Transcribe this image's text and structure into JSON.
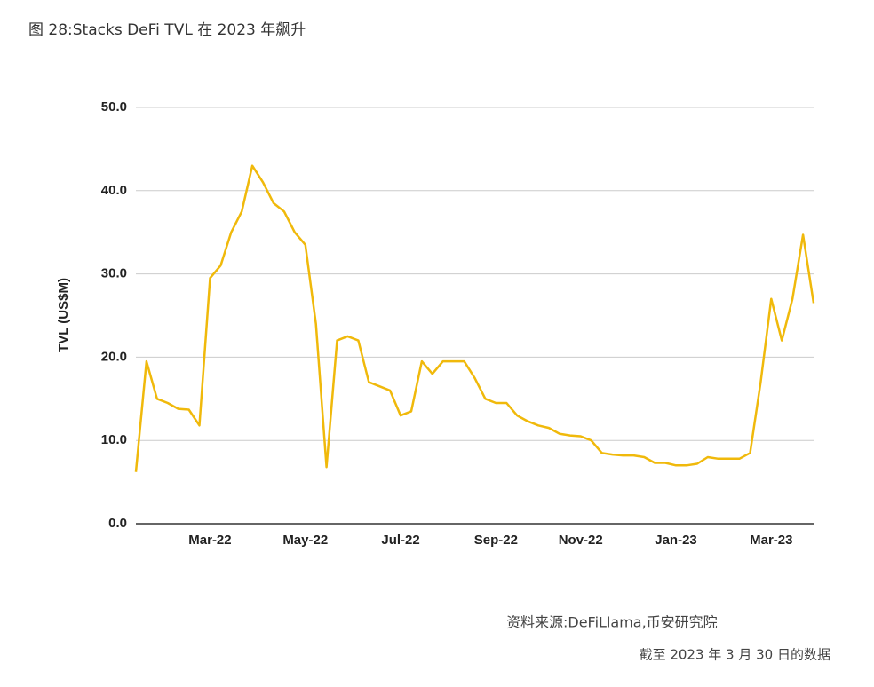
{
  "chart_data": {
    "type": "line",
    "title": "图 28:Stacks DeFi TVL 在 2023 年飙升",
    "ylabel": "TVL (US$M)",
    "source": "资料来源:DeFiLlama,币安研究院",
    "note": "截至 2023 年 3 月 30 日的数据",
    "categories": [
      null,
      null,
      null,
      null,
      null,
      null,
      null,
      "Mar-22",
      null,
      null,
      null,
      null,
      null,
      null,
      null,
      null,
      "May-22",
      null,
      null,
      null,
      null,
      null,
      null,
      null,
      null,
      "Jul-22",
      null,
      null,
      null,
      null,
      null,
      null,
      null,
      null,
      "Sep-22",
      null,
      null,
      null,
      null,
      null,
      null,
      null,
      "Nov-22",
      null,
      null,
      null,
      null,
      null,
      null,
      null,
      null,
      "Jan-23",
      null,
      null,
      null,
      null,
      null,
      null,
      null,
      null,
      "Mar-23",
      null,
      null,
      null,
      null
    ],
    "series": [
      {
        "name": "TVL",
        "color": "#f0b90b",
        "values": [
          6.2,
          19.5,
          15,
          14.5,
          13.8,
          13.7,
          11.8,
          29.5,
          31,
          35,
          37.5,
          43,
          41,
          38.5,
          37.5,
          35,
          33.5,
          24,
          6.8,
          22,
          22.5,
          22,
          17,
          16.5,
          16,
          13,
          13.5,
          19.5,
          18,
          19.5,
          19.5,
          19.5,
          17.5,
          15,
          14.5,
          14.5,
          13,
          12.3,
          11.8,
          11.5,
          10.8,
          10.6,
          10.5,
          10,
          8.5,
          8.3,
          8.2,
          8.2,
          8,
          7.3,
          7.3,
          7,
          7,
          7.2,
          8,
          7.8,
          7.8,
          7.8,
          8.5,
          17,
          27,
          22,
          27,
          34.7,
          26.5
        ]
      }
    ],
    "ylim": [
      0,
      50
    ],
    "yticks": [
      {
        "value": 0,
        "label": "0.0"
      },
      {
        "value": 10,
        "label": "10.0"
      },
      {
        "value": 20,
        "label": "20.0"
      },
      {
        "value": 30,
        "label": "30.0"
      },
      {
        "value": 40,
        "label": "40.0"
      },
      {
        "value": 50,
        "label": "50.0"
      }
    ],
    "grid": true
  }
}
